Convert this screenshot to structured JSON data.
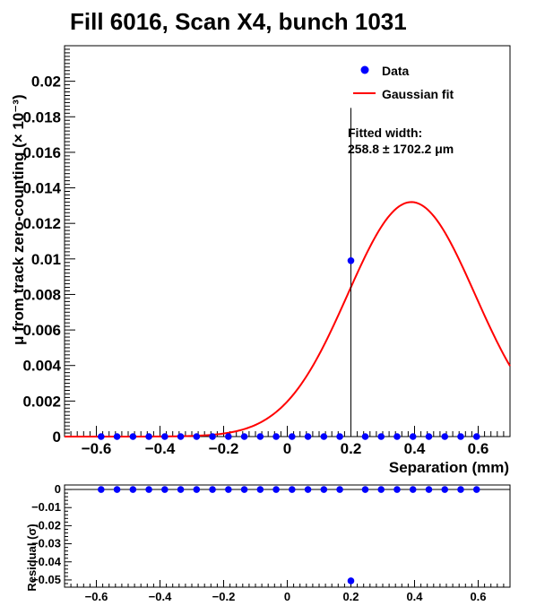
{
  "chart_data": [
    {
      "type": "scatter",
      "title": "Fill 6016, Scan X4, bunch 1031",
      "xlabel": "Separation (mm)",
      "ylabel": "μ from track zero-counting (× 10⁻³)",
      "xlim": [
        -0.7,
        0.7
      ],
      "ylim": [
        0,
        0.022
      ],
      "xticks": [
        -0.6,
        -0.4,
        -0.2,
        0,
        0.2,
        0.4,
        0.6
      ],
      "xtick_labels": [
        "−0.6",
        "−0.4",
        "−0.2",
        "0",
        "0.2",
        "0.4",
        "0.6"
      ],
      "yticks": [
        0,
        0.002,
        0.004,
        0.006,
        0.008,
        0.01,
        0.012,
        0.014,
        0.016,
        0.018,
        0.02
      ],
      "ytick_labels": [
        "0",
        "0.002",
        "0.004",
        "0.006",
        "0.008",
        "0.01",
        "0.012",
        "0.014",
        "0.016",
        "0.018",
        "0.02"
      ],
      "legend": {
        "position": "top-right",
        "entries": [
          "Data",
          "Gaussian fit"
        ]
      },
      "annotation": {
        "line1": "Fitted width:",
        "line2": "258.8 ± 1702.2 μm"
      },
      "series": [
        {
          "name": "Data",
          "color": "#0000ff",
          "x": [
            -0.585,
            -0.535,
            -0.485,
            -0.435,
            -0.385,
            -0.335,
            -0.285,
            -0.235,
            -0.185,
            -0.135,
            -0.085,
            -0.035,
            0.015,
            0.065,
            0.115,
            0.165,
            0.2,
            0.245,
            0.295,
            0.345,
            0.395,
            0.445,
            0.495,
            0.545,
            0.595
          ],
          "y": [
            0,
            0,
            0,
            0,
            0,
            0,
            0,
            0,
            0,
            0,
            0,
            0,
            0,
            0,
            0,
            0,
            0.0099,
            0,
            0,
            0,
            0,
            0,
            0,
            0,
            0
          ],
          "error_bar": {
            "x": 0.2,
            "low": 0,
            "high": 0.0185
          }
        },
        {
          "name": "Gaussian fit",
          "color": "#ff0000",
          "gaussian": {
            "amplitude": 0.0132,
            "mean": 0.39,
            "sigma": 0.2
          },
          "x_range": [
            -0.7,
            0.7
          ]
        }
      ]
    },
    {
      "type": "scatter",
      "title": "",
      "xlabel": "",
      "ylabel": "Residual (σ)",
      "xlim": [
        -0.7,
        0.7
      ],
      "ylim": [
        -0.054,
        0.0025
      ],
      "xticks": [
        -0.6,
        -0.4,
        -0.2,
        0,
        0.2,
        0.4,
        0.6
      ],
      "xtick_labels": [
        "−0.6",
        "−0.4",
        "−0.2",
        "0",
        "0.2",
        "0.4",
        "0.6"
      ],
      "yticks": [
        0,
        -0.01,
        -0.02,
        -0.03,
        -0.04,
        -0.05
      ],
      "ytick_labels": [
        "0",
        "−0.01",
        "−0.02",
        "−0.03",
        "−0.04",
        "−0.05"
      ],
      "series": [
        {
          "name": "Residual",
          "color": "#0000ff",
          "x": [
            -0.585,
            -0.535,
            -0.485,
            -0.435,
            -0.385,
            -0.335,
            -0.285,
            -0.235,
            -0.185,
            -0.135,
            -0.085,
            -0.035,
            0.015,
            0.065,
            0.115,
            0.165,
            0.2,
            0.245,
            0.295,
            0.345,
            0.395,
            0.445,
            0.495,
            0.545,
            0.595
          ],
          "y": [
            0,
            0,
            0,
            0,
            0,
            0,
            0,
            0,
            0,
            0,
            0,
            0,
            0,
            0,
            0,
            0,
            -0.0505,
            0,
            0,
            0,
            0,
            0,
            0,
            0,
            0
          ]
        }
      ]
    }
  ]
}
